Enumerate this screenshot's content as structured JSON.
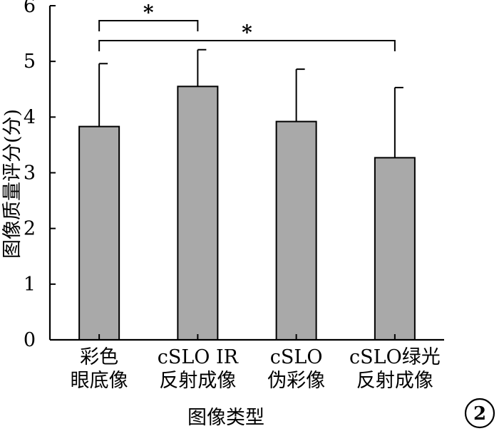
{
  "chart_data": {
    "type": "bar",
    "categories": [
      [
        "彩色",
        "眼底像"
      ],
      [
        "cSLO IR",
        "反射成像"
      ],
      [
        "cSLO",
        "伪彩像"
      ],
      [
        "cSLO绿光",
        "反射成像"
      ]
    ],
    "values": [
      3.83,
      4.55,
      3.92,
      3.27
    ],
    "error_upper": [
      4.96,
      5.21,
      4.86,
      4.53
    ],
    "ylim": [
      0,
      6
    ],
    "yticks": [
      "0",
      "1",
      "2",
      "3",
      "4",
      "5",
      "6"
    ],
    "ylabel": "图像质量评分(分)",
    "xlabel": "图像类型",
    "bar_color": "#a9a9a9",
    "significance": [
      {
        "from": 0,
        "to": 1,
        "label": "*"
      },
      {
        "from": 0,
        "to": 3,
        "label": "*"
      }
    ],
    "panel_label": "2"
  }
}
